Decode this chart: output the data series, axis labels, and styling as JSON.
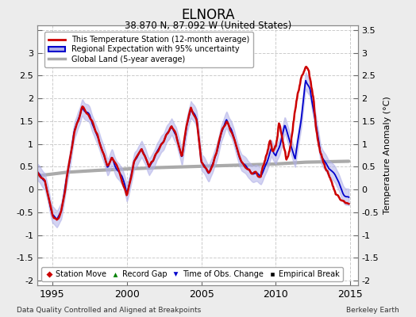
{
  "title": "ELNORA",
  "subtitle": "38.870 N, 87.092 W (United States)",
  "ylabel": "Temperature Anomaly (°C)",
  "xlabel_note": "Data Quality Controlled and Aligned at Breakpoints",
  "credit": "Berkeley Earth",
  "xlim": [
    1994.0,
    2015.5
  ],
  "ylim": [
    -2.1,
    3.6
  ],
  "yticks": [
    -2,
    -1.5,
    -1,
    -0.5,
    0,
    0.5,
    1,
    1.5,
    2,
    2.5,
    3,
    3.5
  ],
  "xticks": [
    1995,
    2000,
    2005,
    2010,
    2015
  ],
  "bg_color": "#ececec",
  "plot_bg_color": "#ffffff",
  "red_line_color": "#cc0000",
  "blue_line_color": "#0000cc",
  "blue_fill_color": "#b0b0e8",
  "gray_line_color": "#aaaaaa",
  "grid_color": "#cccccc",
  "grid_style": "--"
}
